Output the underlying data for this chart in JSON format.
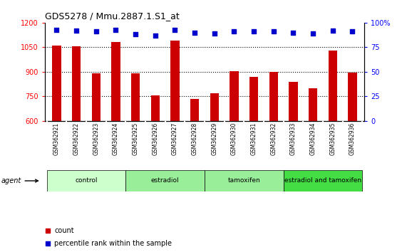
{
  "title": "GDS5278 / Mmu.2887.1.S1_at",
  "samples": [
    "GSM362921",
    "GSM362922",
    "GSM362923",
    "GSM362924",
    "GSM362925",
    "GSM362926",
    "GSM362927",
    "GSM362928",
    "GSM362929",
    "GSM362930",
    "GSM362931",
    "GSM362932",
    "GSM362933",
    "GSM362934",
    "GSM362935",
    "GSM362936"
  ],
  "counts": [
    1060,
    1057,
    893,
    1080,
    893,
    757,
    1090,
    735,
    770,
    905,
    870,
    900,
    840,
    800,
    1030,
    895
  ],
  "percentiles": [
    93,
    92,
    91,
    93,
    88,
    87,
    93,
    90,
    89,
    91,
    91,
    91,
    90,
    89,
    92,
    91
  ],
  "bar_color": "#cc0000",
  "dot_color": "#0000cc",
  "ylim_left": [
    600,
    1200
  ],
  "ylim_right": [
    0,
    100
  ],
  "yticks_left": [
    600,
    750,
    900,
    1050,
    1200
  ],
  "yticks_right": [
    0,
    25,
    50,
    75,
    100
  ],
  "group_configs": [
    {
      "label": "control",
      "start": 0,
      "end": 3,
      "color": "#ccffcc"
    },
    {
      "label": "estradiol",
      "start": 4,
      "end": 7,
      "color": "#99ee99"
    },
    {
      "label": "tamoxifen",
      "start": 8,
      "end": 11,
      "color": "#99ee99"
    },
    {
      "label": "estradiol and tamoxifen",
      "start": 12,
      "end": 15,
      "color": "#44dd44"
    }
  ],
  "tick_bg_color": "#cccccc",
  "agent_label": "agent",
  "legend_count_label": "count",
  "legend_percentile_label": "percentile rank within the sample"
}
